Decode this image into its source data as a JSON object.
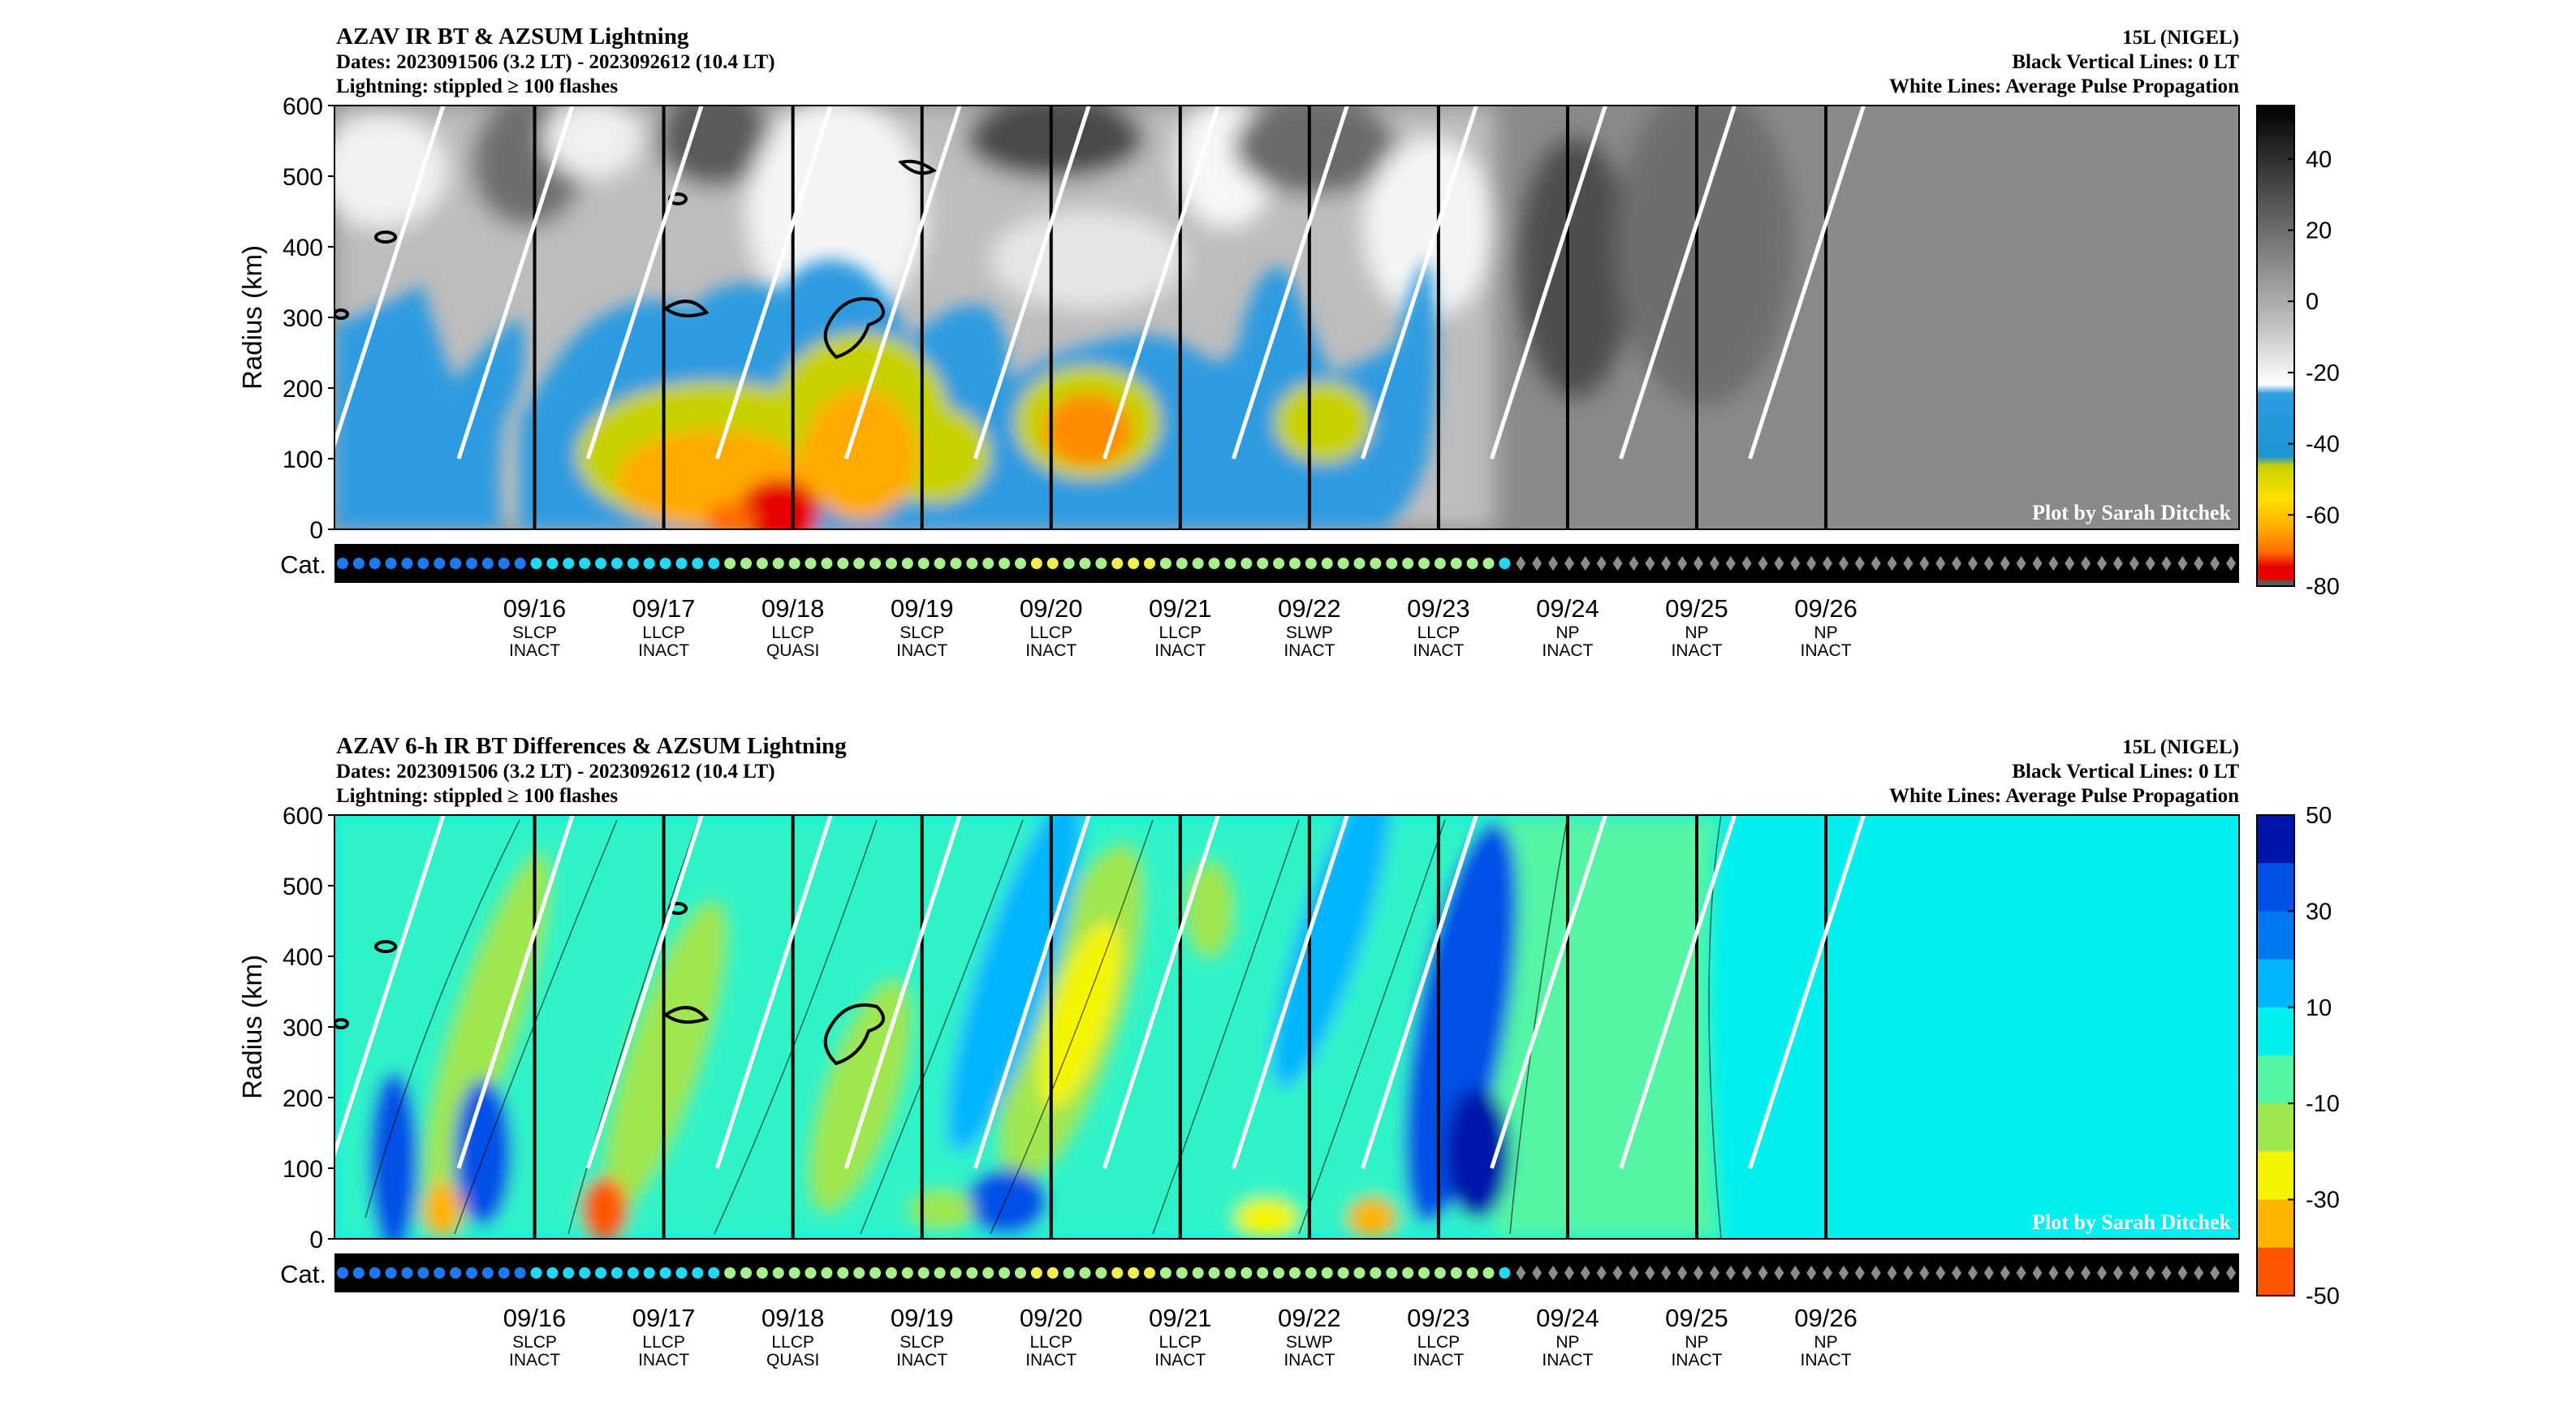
{
  "chart_data": [
    {
      "type": "heatmap",
      "title": "AZAV IR BT & AZSUM Lightning",
      "subtitle_dates": "Dates: 2023091506 (3.2 LT) - 2023092612 (10.4 LT)",
      "subtitle_lightning": "Lightning: stippled ≥ 100 flashes",
      "storm": "15L (NIGEL)",
      "note_black": "Black Vertical Lines: 0 LT",
      "note_white": "White Lines: Average Pulse Propagation",
      "credit": "Plot by Sarah Ditchek",
      "ylabel": "Radius (km)",
      "ylim": [
        0,
        600
      ],
      "yticks": [
        "0",
        "100",
        "200",
        "300",
        "400",
        "500",
        "600"
      ],
      "cat_label": "Cat.",
      "colorbar": {
        "range": [
          -80,
          55
        ],
        "ticks": [
          "40",
          "20",
          "0",
          "-20",
          "-40",
          "-60",
          "-80"
        ],
        "tick_values": [
          40,
          20,
          0,
          -20,
          -40,
          -60,
          -80
        ]
      }
    },
    {
      "type": "heatmap",
      "title": "AZAV 6-h IR BT Differences & AZSUM Lightning",
      "subtitle_dates": "Dates: 2023091506 (3.2 LT) - 2023092612 (10.4 LT)",
      "subtitle_lightning": "Lightning: stippled ≥ 100 flashes",
      "storm": "15L (NIGEL)",
      "note_black": "Black Vertical Lines: 0 LT",
      "note_white": "White Lines: Average Pulse Propagation",
      "credit": "Plot by Sarah Ditchek",
      "ylabel": "Radius (km)",
      "ylim": [
        0,
        600
      ],
      "yticks": [
        "0",
        "100",
        "200",
        "300",
        "400",
        "500",
        "600"
      ],
      "cat_label": "Cat.",
      "colorbar": {
        "range": [
          -50,
          50
        ],
        "ticks": [
          "50",
          "30",
          "10",
          "-10",
          "-30",
          "-50"
        ],
        "tick_values": [
          50,
          30,
          10,
          -10,
          -30,
          -50
        ]
      }
    }
  ],
  "x_axis": {
    "days": [
      {
        "date": "09/16",
        "phase": "SLCP",
        "state": "INACT"
      },
      {
        "date": "09/17",
        "phase": "LLCP",
        "state": "INACT"
      },
      {
        "date": "09/18",
        "phase": "LLCP",
        "state": "QUASI"
      },
      {
        "date": "09/19",
        "phase": "SLCP",
        "state": "INACT"
      },
      {
        "date": "09/20",
        "phase": "LLCP",
        "state": "INACT"
      },
      {
        "date": "09/21",
        "phase": "LLCP",
        "state": "INACT"
      },
      {
        "date": "09/22",
        "phase": "SLWP",
        "state": "INACT"
      },
      {
        "date": "09/23",
        "phase": "LLCP",
        "state": "INACT"
      },
      {
        "date": "09/24",
        "phase": "NP",
        "state": "INACT"
      },
      {
        "date": "09/25",
        "phase": "NP",
        "state": "INACT"
      },
      {
        "date": "09/26",
        "phase": "NP",
        "state": "INACT"
      }
    ]
  },
  "category_sequence": "BBBBBBBBBBBBCCCCCCCCCCCCGGGGGGGGGGGGGGGGGGGYYGGGYYYGGGGGGGGGGGGGGGGGGGGGCDDDDDDDDDDDDDDDDDDDDDDDDDDDDDDDDDDDDDDDDDDDDD",
  "category_colors": {
    "B": "#1e78f0",
    "C": "#22d8f8",
    "G": "#a8f08c",
    "Y": "#f0f050",
    "D": "#8c8c8c"
  },
  "colors": {
    "bt_scale": [
      "#5a5a5a",
      "#e60000",
      "#ff6a00",
      "#ffaa00",
      "#ffe000",
      "#c8d200",
      "#1e96d2",
      "#2d9be0"
    ],
    "diff_scale": [
      "#ff5500",
      "#ffb400",
      "#f5f500",
      "#a0e650",
      "#55f5a5",
      "#00f0f0",
      "#00b4ff",
      "#0050e6",
      "#0014aa"
    ]
  }
}
